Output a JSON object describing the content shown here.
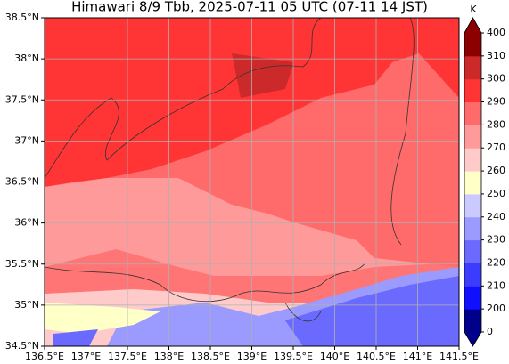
{
  "map": {
    "title": "Himawari 8/9 Tbb, 2025-07-11 05 UTC (07-11 14 JST)",
    "xlim": [
      136.5,
      141.5
    ],
    "ylim": [
      34.5,
      38.5
    ],
    "xticks": [
      {
        "value": 136.5,
        "label": "136.5°E"
      },
      {
        "value": 137,
        "label": "137°E"
      },
      {
        "value": 137.5,
        "label": "137.5°E"
      },
      {
        "value": 138,
        "label": "138°E"
      },
      {
        "value": 138.5,
        "label": "138.5°E"
      },
      {
        "value": 139,
        "label": "139°E"
      },
      {
        "value": 139.5,
        "label": "139.5°E"
      },
      {
        "value": 140,
        "label": "140°E"
      },
      {
        "value": 140.5,
        "label": "140.5°E"
      },
      {
        "value": 141,
        "label": "141°E"
      },
      {
        "value": 141.5,
        "label": "141.5°E"
      }
    ],
    "yticks": [
      {
        "value": 34.5,
        "label": "34.5°N"
      },
      {
        "value": 35,
        "label": "35°N"
      },
      {
        "value": 35.5,
        "label": "35.5°N"
      },
      {
        "value": 36,
        "label": "36°N"
      },
      {
        "value": 36.5,
        "label": "36.5°N"
      },
      {
        "value": 37,
        "label": "37°N"
      },
      {
        "value": 37.5,
        "label": "37.5°N"
      },
      {
        "value": 38,
        "label": "38°N"
      },
      {
        "value": 38.5,
        "label": "38.5°N"
      }
    ],
    "grid": true,
    "colorbar": {
      "label": "K",
      "ticks": [
        0,
        200,
        210,
        220,
        230,
        240,
        250,
        260,
        270,
        280,
        290,
        300,
        310,
        400
      ],
      "colors": [
        "#00008b",
        "#1010ff",
        "#3c3cff",
        "#6a6aff",
        "#9a9aff",
        "#cacaff",
        "#ffffc8",
        "#ffcaca",
        "#ff9a9a",
        "#ff6a6a",
        "#ff3434",
        "#cc2a2a",
        "#8b0000"
      ]
    }
  }
}
